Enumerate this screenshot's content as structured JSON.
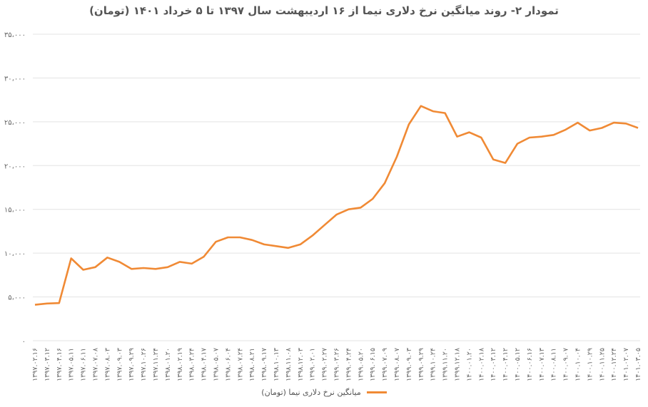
{
  "chart_data": {
    "type": "line",
    "title": "تمودار ۲- روند میانگین نرخ دلاری نیما از ۱۶ اردیبهشت سال ۱۳۹۷ تا ۵ خرداد ۱۴۰۱ (تومان)",
    "ylim": [
      0,
      35000
    ],
    "y_ticks": [
      0,
      5000,
      10000,
      15000,
      20000,
      25000,
      30000,
      35000
    ],
    "y_tick_labels": [
      "۰",
      "۵،۰۰۰",
      "۱۰،۰۰۰",
      "۱۵،۰۰۰",
      "۲۰،۰۰۰",
      "۲۵،۰۰۰",
      "۳۰،۰۰۰",
      "۳۵،۰۰۰"
    ],
    "x_tick_labels": [
      "۱۳۹۷.۰۲.۱۶",
      "۱۳۹۷.۰۳.۱۲",
      "۱۳۹۷.۰۴.۱۶",
      "۱۳۹۷.۰۵.۱۱",
      "۱۳۹۷.۰۶.۱۱",
      "۱۳۹۷.۰۷.۰۸",
      "۱۳۹۷.۰۸.۰۳",
      "۱۳۹۷.۰۹.۰۳",
      "۱۳۹۷.۰۹.۲۹",
      "۱۳۹۷.۱۰.۲۶",
      "۱۳۹۷.۱۱.۲۴",
      "۱۳۹۸.۰۱.۲۰",
      "۱۳۹۸.۰۲.۱۹",
      "۱۳۹۸.۰۳.۲۴",
      "۱۳۹۸.۰۴.۱۷",
      "۱۳۹۸.۰۵.۰۷",
      "۱۳۹۸.۰۶.۰۴",
      "۱۳۹۸.۰۷.۲۴",
      "۱۳۹۸.۰۸.۲۱",
      "۱۳۹۸.۰۹.۱۷",
      "۱۳۹۸.۱۰.۱۳",
      "۱۳۹۸.۱۱.۰۸",
      "۱۳۹۸.۱۲.۰۳",
      "۱۳۹۹.۰۲.۰۱",
      "۱۳۹۹.۰۲.۲۷",
      "۱۳۹۹.۰۳.۲۶",
      "۱۳۹۹.۰۴.۲۴",
      "۱۳۹۹.۰۵.۲۰",
      "۱۳۹۹.۰۶.۱۵",
      "۱۳۹۹.۰۷.۰۹",
      "۱۳۹۹.۰۸.۰۷",
      "۱۳۹۹.۰۹.۰۳",
      "۱۳۹۹.۰۹.۲۹",
      "۱۳۹۹.۱۰.۲۴",
      "۱۳۹۹.۱۱.۲۰",
      "۱۳۹۹.۱۲.۱۸",
      "۱۴۰۰.۰۱.۲۰",
      "۱۴۰۰.۰۲.۱۸",
      "۱۴۰۰.۰۳.۱۲",
      "۱۴۰۰.۰۴.۱۲",
      "۱۴۰۰.۰۵.۱۲",
      "۱۴۰۰.۰۶.۱۶",
      "۱۴۰۰.۰۷.۱۳",
      "۱۴۰۰.۰۸.۱۱",
      "۱۴۰۰.۰۹.۰۷",
      "۱۴۰۰.۱۰.۰۴",
      "۱۴۰۰.۱۰.۲۹",
      "۱۴۰۰.۱۱.۲۵",
      "۱۴۰۰.۱۲.۲۴",
      "۱۴۰۱.۰۲.۰۷",
      "۱۴۰۱.۰۳.۰۵"
    ],
    "grid": "horizontal",
    "legend_position": "bottom",
    "series": [
      {
        "name": "میانگین نرخ دلاری نیما (تومان)",
        "color": "#F08A35",
        "values": [
          4100,
          4250,
          4300,
          9400,
          8100,
          8400,
          9500,
          9000,
          8200,
          8300,
          8200,
          8400,
          9000,
          8800,
          9600,
          11300,
          11800,
          11800,
          11500,
          11000,
          10800,
          10600,
          11000,
          12000,
          13200,
          14400,
          15000,
          15200,
          16200,
          18000,
          21000,
          24700,
          26800,
          26200,
          26000,
          23300,
          23800,
          23200,
          20700,
          20300,
          22500,
          23200,
          23300,
          23500,
          24100,
          24900,
          24000,
          24300,
          24900,
          24800,
          24300
        ]
      }
    ]
  }
}
